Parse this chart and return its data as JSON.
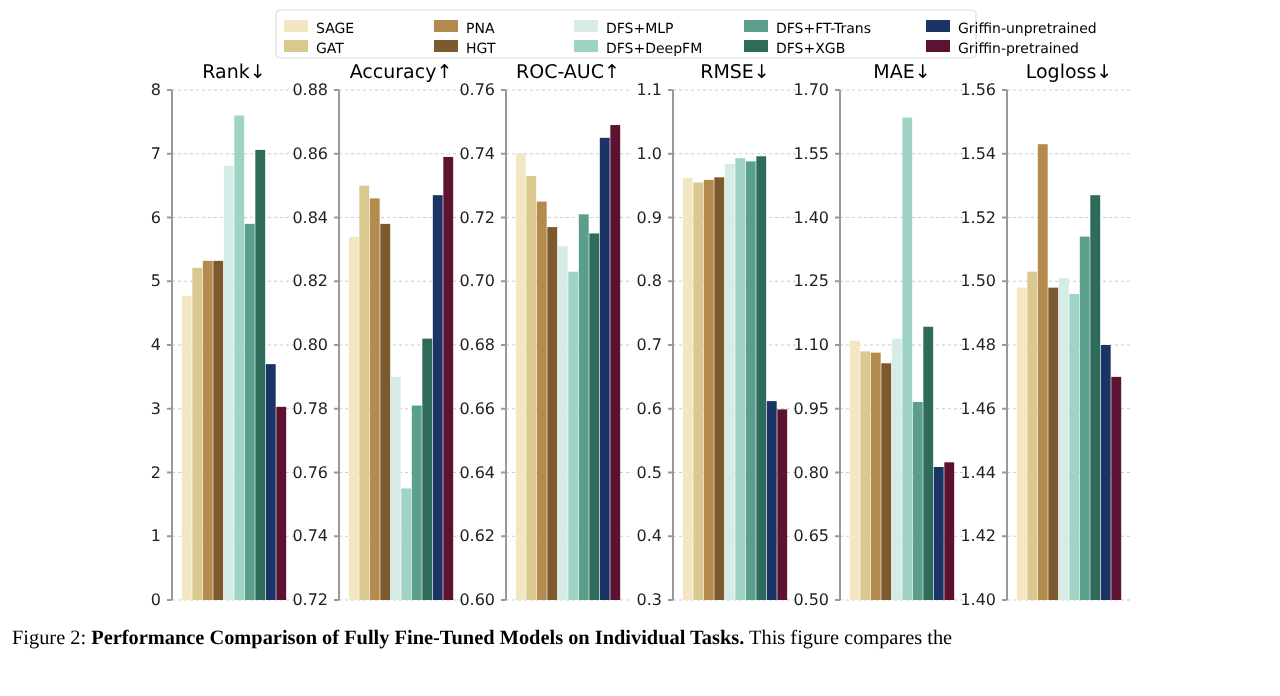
{
  "chart_data": [
    {
      "type": "bar",
      "title": "Rank↓",
      "categories": [
        null
      ],
      "ylim": [
        0,
        8
      ],
      "yticks": [
        0,
        1,
        2,
        3,
        4,
        5,
        6,
        7,
        8
      ],
      "grid": "y",
      "legend": "top",
      "annotations": [
        "Figure 2: ",
        "Performance Comparison of Fully Fine-Tuned Models on Individual Tasks.",
        "This figure compares the"
      ],
      "series": [
        {
          "name": "SAGE",
          "color": "#f3e6c3",
          "values": [
            4.77
          ]
        },
        {
          "name": "GAT",
          "color": "#d9c98f",
          "values": [
            5.21
          ]
        },
        {
          "name": "PNA",
          "color": "#b58a4f",
          "values": [
            5.32
          ]
        },
        {
          "name": "HGT",
          "color": "#7d5a2e",
          "values": [
            5.32
          ]
        },
        {
          "name": "DFS+MLP",
          "color": "#d6ece6",
          "values": [
            6.81
          ]
        },
        {
          "name": "DFS+DeepFM",
          "color": "#9fd3c5",
          "values": [
            7.6
          ]
        },
        {
          "name": "DFS+FT-Trans",
          "color": "#5a9e8c",
          "values": [
            5.9
          ]
        },
        {
          "name": "DFS+XGB",
          "color": "#2f6b5a",
          "values": [
            7.06
          ]
        },
        {
          "name": "Griffin-unpretrained",
          "color": "#1b3466",
          "values": [
            3.7
          ]
        },
        {
          "name": "Griffin-pretrained",
          "color": "#5c1230",
          "values": [
            3.03
          ]
        }
      ]
    },
    {
      "type": "bar",
      "title": "Accuracy↑",
      "categories": [
        null
      ],
      "ylim": [
        0.72,
        0.88
      ],
      "yticks": [
        {
          "value": 0.72,
          "label": "0.72"
        },
        {
          "value": 0.74,
          "label": "0.74"
        },
        {
          "value": 0.76,
          "label": "0.76"
        },
        {
          "value": 0.78,
          "label": "0.78"
        },
        {
          "value": 0.8,
          "label": "0.80"
        },
        {
          "value": 0.82,
          "label": "0.82"
        },
        {
          "value": 0.84,
          "label": "0.84"
        },
        {
          "value": 0.86,
          "label": "0.86"
        },
        {
          "value": 0.88,
          "label": "0.88"
        }
      ],
      "grid": "y",
      "series": [
        {
          "color": "#f3e6c3",
          "values": [
            0.834
          ]
        },
        {
          "color": "#d9c98f",
          "values": [
            0.85
          ]
        },
        {
          "color": "#b58a4f",
          "values": [
            0.846
          ]
        },
        {
          "color": "#7d5a2e",
          "values": [
            0.838
          ]
        },
        {
          "color": "#d6ece6",
          "values": [
            0.79
          ]
        },
        {
          "color": "#9fd3c5",
          "values": [
            0.755
          ]
        },
        {
          "color": "#5a9e8c",
          "values": [
            0.781
          ]
        },
        {
          "color": "#2f6b5a",
          "values": [
            0.802
          ]
        },
        {
          "color": "#1b3466",
          "values": [
            0.847
          ]
        },
        {
          "color": "#5c1230",
          "values": [
            0.859
          ]
        }
      ]
    },
    {
      "type": "bar",
      "title": "ROC-AUC↑",
      "categories": [
        null
      ],
      "ylim": [
        0.6,
        0.76
      ],
      "yticks": [
        {
          "value": 0.6,
          "label": "0.60"
        },
        {
          "value": 0.62,
          "label": "0.62"
        },
        {
          "value": 0.64,
          "label": "0.64"
        },
        {
          "value": 0.66,
          "label": "0.66"
        },
        {
          "value": 0.68,
          "label": "0.68"
        },
        {
          "value": 0.7,
          "label": "0.70"
        },
        {
          "value": 0.72,
          "label": "0.72"
        },
        {
          "value": 0.74,
          "label": "0.74"
        },
        {
          "value": 0.76,
          "label": "0.76"
        }
      ],
      "grid": "y",
      "series": [
        {
          "color": "#f3e6c3",
          "values": [
            0.74
          ]
        },
        {
          "color": "#d9c98f",
          "values": [
            0.733
          ]
        },
        {
          "color": "#b58a4f",
          "values": [
            0.725
          ]
        },
        {
          "color": "#7d5a2e",
          "values": [
            0.717
          ]
        },
        {
          "color": "#d6ece6",
          "values": [
            0.711
          ]
        },
        {
          "color": "#9fd3c5",
          "values": [
            0.703
          ]
        },
        {
          "color": "#5a9e8c",
          "values": [
            0.721
          ]
        },
        {
          "color": "#2f6b5a",
          "values": [
            0.715
          ]
        },
        {
          "color": "#1b3466",
          "values": [
            0.745
          ]
        },
        {
          "color": "#5c1230",
          "values": [
            0.749
          ]
        }
      ]
    },
    {
      "type": "bar",
      "title": "RMSE↓",
      "categories": [
        null
      ],
      "ylim": [
        0.3,
        1.1
      ],
      "yticks": [
        0.3,
        0.4,
        0.5,
        0.6,
        0.7,
        0.8,
        0.9,
        {
          "value": 1.0,
          "label": "1.0"
        },
        1.1
      ],
      "grid": "y",
      "series": [
        {
          "color": "#f3e6c3",
          "values": [
            0.962
          ]
        },
        {
          "color": "#d9c98f",
          "values": [
            0.955
          ]
        },
        {
          "color": "#b58a4f",
          "values": [
            0.959
          ]
        },
        {
          "color": "#7d5a2e",
          "values": [
            0.963
          ]
        },
        {
          "color": "#d6ece6",
          "values": [
            0.984
          ]
        },
        {
          "color": "#9fd3c5",
          "values": [
            0.993
          ]
        },
        {
          "color": "#5a9e8c",
          "values": [
            0.988
          ]
        },
        {
          "color": "#2f6b5a",
          "values": [
            0.996
          ]
        },
        {
          "color": "#1b3466",
          "values": [
            0.612
          ]
        },
        {
          "color": "#5c1230",
          "values": [
            0.599
          ]
        }
      ]
    },
    {
      "type": "bar",
      "title": "MAE↓",
      "categories": [
        null
      ],
      "ylim": [
        0.5,
        1.7
      ],
      "yticks": [
        {
          "value": 0.5,
          "label": "0.50"
        },
        {
          "value": 0.65,
          "label": "0.65"
        },
        {
          "value": 0.8,
          "label": "0.80"
        },
        {
          "value": 0.95,
          "label": "0.95"
        },
        {
          "value": 1.1,
          "label": "1.10"
        },
        {
          "value": 1.25,
          "label": "1.25"
        },
        {
          "value": 1.4,
          "label": "1.40"
        },
        {
          "value": 1.55,
          "label": "1.55"
        },
        {
          "value": 1.7,
          "label": "1.70"
        }
      ],
      "grid": "y",
      "series": [
        {
          "color": "#f3e6c3",
          "values": [
            1.11
          ]
        },
        {
          "color": "#d9c98f",
          "values": [
            1.085
          ]
        },
        {
          "color": "#b58a4f",
          "values": [
            1.082
          ]
        },
        {
          "color": "#7d5a2e",
          "values": [
            1.057
          ]
        },
        {
          "color": "#d6ece6",
          "values": [
            1.115
          ]
        },
        {
          "color": "#9fd3c5",
          "values": [
            1.635
          ]
        },
        {
          "color": "#5a9e8c",
          "values": [
            0.966
          ]
        },
        {
          "color": "#2f6b5a",
          "values": [
            1.143
          ]
        },
        {
          "color": "#1b3466",
          "values": [
            0.813
          ]
        },
        {
          "color": "#5c1230",
          "values": [
            0.824
          ]
        }
      ]
    },
    {
      "type": "bar",
      "title": "Logloss↓",
      "categories": [
        null
      ],
      "ylim": [
        1.4,
        1.56
      ],
      "yticks": [
        {
          "value": 1.4,
          "label": "1.40"
        },
        {
          "value": 1.42,
          "label": "1.42"
        },
        {
          "value": 1.44,
          "label": "1.44"
        },
        {
          "value": 1.46,
          "label": "1.46"
        },
        {
          "value": 1.48,
          "label": "1.48"
        },
        {
          "value": 1.5,
          "label": "1.50"
        },
        {
          "value": 1.52,
          "label": "1.52"
        },
        {
          "value": 1.54,
          "label": "1.54"
        },
        {
          "value": 1.56,
          "label": "1.56"
        }
      ],
      "grid": "y",
      "series": [
        {
          "color": "#f3e6c3",
          "values": [
            1.498
          ]
        },
        {
          "color": "#d9c98f",
          "values": [
            1.503
          ]
        },
        {
          "color": "#b58a4f",
          "values": [
            1.543
          ]
        },
        {
          "color": "#7d5a2e",
          "values": [
            1.498
          ]
        },
        {
          "color": "#d6ece6",
          "values": [
            1.501
          ]
        },
        {
          "color": "#9fd3c5",
          "values": [
            1.496
          ]
        },
        {
          "color": "#5a9e8c",
          "values": [
            1.514
          ]
        },
        {
          "color": "#2f6b5a",
          "values": [
            1.527
          ]
        },
        {
          "color": "#1b3466",
          "values": [
            1.48
          ]
        },
        {
          "color": "#5c1230",
          "values": [
            1.47
          ]
        }
      ]
    }
  ]
}
